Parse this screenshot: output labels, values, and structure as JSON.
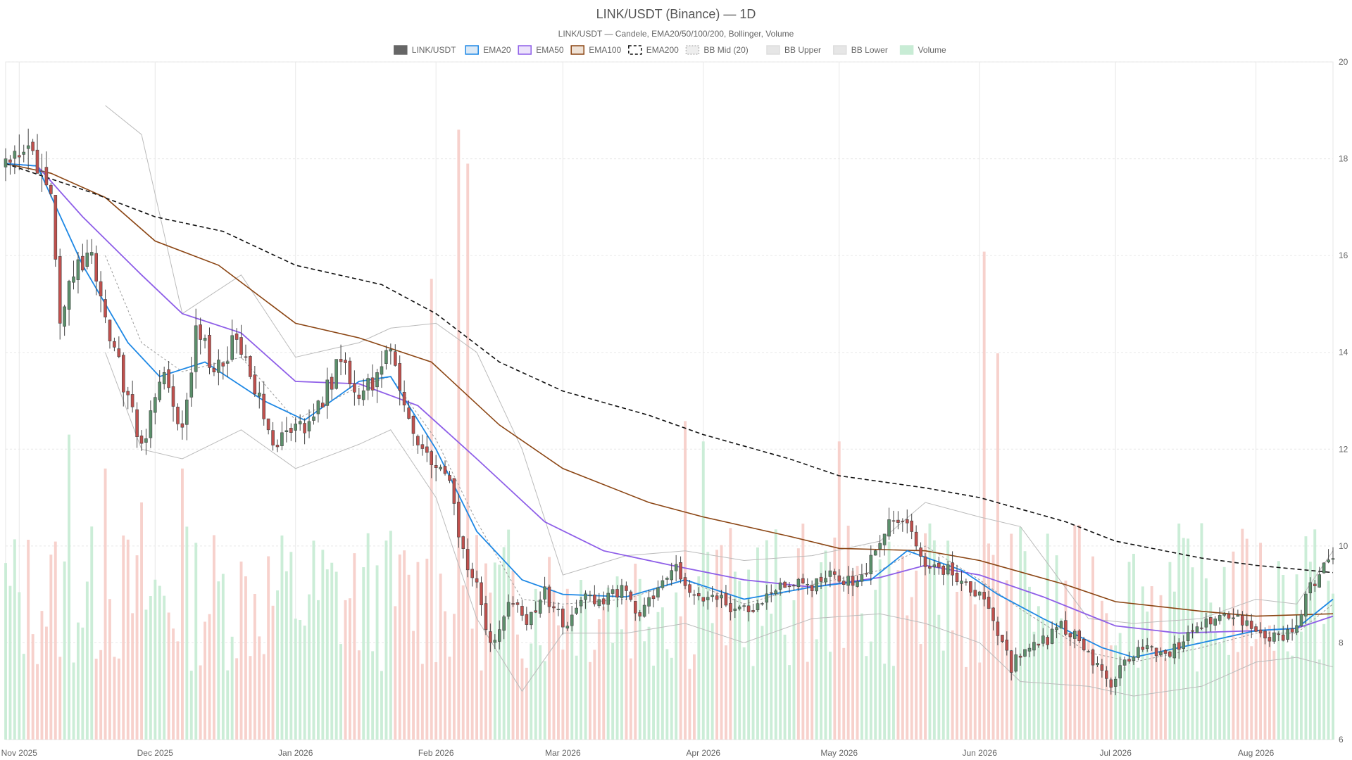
{
  "chart_data": {
    "type": "candlestick",
    "title": "LINK/USDT (Binance) — 1D",
    "subtitle": "LINK/USDT — Candele, EMA20/50/100/200, Bollinger, Volume",
    "legend_position": "top-center",
    "grid": true,
    "y_axis_position": "right",
    "ylim": [
      6,
      20
    ],
    "y_ticks": [
      6,
      8,
      10,
      12,
      14,
      16,
      18,
      20
    ],
    "x_range": [
      "2025-10-29",
      "2026-08-18"
    ],
    "x_ticks": [
      {
        "date": "2025-11-01",
        "label": "Nov 2025"
      },
      {
        "date": "2025-12-01",
        "label": "Dec 2025"
      },
      {
        "date": "2026-01-01",
        "label": "Jan 2026"
      },
      {
        "date": "2026-02-01",
        "label": "Feb 2026"
      },
      {
        "date": "2026-03-01",
        "label": "Mar 2026"
      },
      {
        "date": "2026-04-01",
        "label": "Apr 2026"
      },
      {
        "date": "2026-05-01",
        "label": "May 2026"
      },
      {
        "date": "2026-06-01",
        "label": "Jun 2026"
      },
      {
        "date": "2026-07-01",
        "label": "Jul 2026"
      },
      {
        "date": "2026-08-01",
        "label": "Aug 2026"
      }
    ],
    "colors": {
      "up": "#5b8f6b",
      "down": "#c0504d",
      "ema20": "#1e88e5",
      "ema50": "#8e5ee8",
      "ema100": "#8b4513",
      "ema200": "#111111",
      "bb_mid": "#999999",
      "bollinger": "#bbbbbb",
      "volume_up": "#c8ecd5",
      "volume_down": "#f7cfc9",
      "grid": "#e8e8e8"
    },
    "legend": [
      {
        "label": "LINK/USDT",
        "style": "candle"
      },
      {
        "label": "EMA20",
        "style": "ema20"
      },
      {
        "label": "EMA50",
        "style": "ema50"
      },
      {
        "label": "EMA100",
        "style": "ema100"
      },
      {
        "label": "EMA200",
        "style": "ema200"
      },
      {
        "label": "BB Mid (20)",
        "style": "bbmid"
      },
      {
        "label": "BB Upper",
        "style": "bbupper"
      },
      {
        "label": "BB Lower",
        "style": "bblower"
      },
      {
        "label": "Volume",
        "style": "volume"
      }
    ],
    "close_path": [
      [
        "2025-10-29",
        17.8
      ],
      [
        "2025-11-02",
        18.3
      ],
      [
        "2025-11-05",
        17.9
      ],
      [
        "2025-11-08",
        17.0
      ],
      [
        "2025-11-10",
        14.8
      ],
      [
        "2025-11-13",
        15.6
      ],
      [
        "2025-11-17",
        16.3
      ],
      [
        "2025-11-20",
        14.5
      ],
      [
        "2025-11-24",
        13.4
      ],
      [
        "2025-11-28",
        12.0
      ],
      [
        "2025-12-03",
        13.5
      ],
      [
        "2025-12-07",
        12.4
      ],
      [
        "2025-12-10",
        14.5
      ],
      [
        "2025-12-14",
        13.6
      ],
      [
        "2025-12-18",
        14.2
      ],
      [
        "2025-12-22",
        13.5
      ],
      [
        "2025-12-27",
        12.2
      ],
      [
        "2026-01-03",
        12.5
      ],
      [
        "2026-01-07",
        13.0
      ],
      [
        "2026-01-11",
        13.9
      ],
      [
        "2026-01-15",
        13.2
      ],
      [
        "2026-01-18",
        13.3
      ],
      [
        "2026-01-22",
        14.1
      ],
      [
        "2026-01-26",
        12.6
      ],
      [
        "2026-01-31",
        11.7
      ],
      [
        "2026-02-04",
        11.2
      ],
      [
        "2026-02-07",
        9.8
      ],
      [
        "2026-02-10",
        9.3
      ],
      [
        "2026-02-13",
        7.9
      ],
      [
        "2026-02-17",
        8.9
      ],
      [
        "2026-02-21",
        8.5
      ],
      [
        "2026-02-25",
        9.0
      ],
      [
        "2026-03-02",
        8.3
      ],
      [
        "2026-03-06",
        9.0
      ],
      [
        "2026-03-10",
        8.8
      ],
      [
        "2026-03-14",
        9.2
      ],
      [
        "2026-03-17",
        8.6
      ],
      [
        "2026-03-22",
        9.0
      ],
      [
        "2026-03-26",
        9.6
      ],
      [
        "2026-03-30",
        8.9
      ],
      [
        "2026-04-03",
        9.1
      ],
      [
        "2026-04-07",
        8.6
      ],
      [
        "2026-04-12",
        8.7
      ],
      [
        "2026-04-17",
        9.1
      ],
      [
        "2026-04-21",
        9.3
      ],
      [
        "2026-04-25",
        9.2
      ],
      [
        "2026-04-29",
        9.4
      ],
      [
        "2026-05-05",
        9.2
      ],
      [
        "2026-05-09",
        9.8
      ],
      [
        "2026-05-13",
        10.6
      ],
      [
        "2026-05-16",
        10.4
      ],
      [
        "2026-05-20",
        9.5
      ],
      [
        "2026-05-25",
        9.5
      ],
      [
        "2026-05-30",
        9.2
      ],
      [
        "2026-06-02",
        8.9
      ],
      [
        "2026-06-05",
        8.2
      ],
      [
        "2026-06-08",
        7.5
      ],
      [
        "2026-06-12",
        8.0
      ],
      [
        "2026-06-16",
        8.1
      ],
      [
        "2026-06-19",
        8.4
      ],
      [
        "2026-06-23",
        8.0
      ],
      [
        "2026-06-27",
        7.5
      ],
      [
        "2026-06-30",
        7.2
      ],
      [
        "2026-07-04",
        7.7
      ],
      [
        "2026-07-08",
        8.0
      ],
      [
        "2026-07-12",
        7.7
      ],
      [
        "2026-07-16",
        8.0
      ],
      [
        "2026-07-21",
        8.5
      ],
      [
        "2026-07-26",
        8.6
      ],
      [
        "2026-07-31",
        8.3
      ],
      [
        "2026-08-05",
        8.1
      ],
      [
        "2026-08-09",
        8.2
      ],
      [
        "2026-08-12",
        9.0
      ],
      [
        "2026-08-15",
        9.5
      ],
      [
        "2026-08-18",
        9.8
      ]
    ],
    "ema200": [
      [
        "2025-10-29",
        17.9
      ],
      [
        "2025-11-17",
        17.3
      ],
      [
        "2025-12-01",
        16.8
      ],
      [
        "2025-12-16",
        16.5
      ],
      [
        "2026-01-01",
        15.8
      ],
      [
        "2026-01-20",
        15.4
      ],
      [
        "2026-02-01",
        14.8
      ],
      [
        "2026-02-15",
        13.8
      ],
      [
        "2026-03-01",
        13.2
      ],
      [
        "2026-03-20",
        12.7
      ],
      [
        "2026-04-01",
        12.3
      ],
      [
        "2026-04-20",
        11.8
      ],
      [
        "2026-05-01",
        11.45
      ],
      [
        "2026-05-20",
        11.2
      ],
      [
        "2026-06-01",
        11.0
      ],
      [
        "2026-06-20",
        10.5
      ],
      [
        "2026-07-01",
        10.1
      ],
      [
        "2026-07-20",
        9.75
      ],
      [
        "2026-08-01",
        9.6
      ],
      [
        "2026-08-18",
        9.45
      ]
    ],
    "ema100": [
      [
        "2025-10-29",
        17.9
      ],
      [
        "2025-11-08",
        17.7
      ],
      [
        "2025-11-20",
        17.2
      ],
      [
        "2025-12-01",
        16.3
      ],
      [
        "2025-12-15",
        15.8
      ],
      [
        "2026-01-01",
        14.6
      ],
      [
        "2026-01-15",
        14.3
      ],
      [
        "2026-01-31",
        13.8
      ],
      [
        "2026-02-15",
        12.5
      ],
      [
        "2026-03-01",
        11.6
      ],
      [
        "2026-03-20",
        10.9
      ],
      [
        "2026-04-01",
        10.6
      ],
      [
        "2026-04-20",
        10.2
      ],
      [
        "2026-05-01",
        9.95
      ],
      [
        "2026-05-20",
        9.9
      ],
      [
        "2026-06-01",
        9.7
      ],
      [
        "2026-06-20",
        9.2
      ],
      [
        "2026-07-01",
        8.85
      ],
      [
        "2026-07-20",
        8.65
      ],
      [
        "2026-08-01",
        8.55
      ],
      [
        "2026-08-18",
        8.6
      ]
    ],
    "ema50": [
      [
        "2025-10-29",
        17.9
      ],
      [
        "2025-11-05",
        17.85
      ],
      [
        "2025-11-15",
        16.8
      ],
      [
        "2025-11-28",
        15.6
      ],
      [
        "2025-12-07",
        14.8
      ],
      [
        "2025-12-20",
        14.4
      ],
      [
        "2026-01-01",
        13.4
      ],
      [
        "2026-01-15",
        13.35
      ],
      [
        "2026-01-28",
        12.9
      ],
      [
        "2026-02-10",
        11.8
      ],
      [
        "2026-02-25",
        10.5
      ],
      [
        "2026-03-10",
        9.9
      ],
      [
        "2026-03-25",
        9.6
      ],
      [
        "2026-04-10",
        9.3
      ],
      [
        "2026-04-25",
        9.15
      ],
      [
        "2026-05-10",
        9.35
      ],
      [
        "2026-05-20",
        9.6
      ],
      [
        "2026-06-01",
        9.4
      ],
      [
        "2026-06-15",
        8.95
      ],
      [
        "2026-07-01",
        8.35
      ],
      [
        "2026-07-15",
        8.2
      ],
      [
        "2026-08-01",
        8.25
      ],
      [
        "2026-08-10",
        8.3
      ],
      [
        "2026-08-18",
        8.55
      ]
    ],
    "ema20": [
      [
        "2025-10-29",
        17.9
      ],
      [
        "2025-11-05",
        17.85
      ],
      [
        "2025-11-15",
        15.8
      ],
      [
        "2025-11-25",
        14.2
      ],
      [
        "2025-12-02",
        13.5
      ],
      [
        "2025-12-12",
        13.8
      ],
      [
        "2025-12-25",
        13.0
      ],
      [
        "2026-01-03",
        12.6
      ],
      [
        "2026-01-15",
        13.4
      ],
      [
        "2026-01-22",
        13.5
      ],
      [
        "2026-02-01",
        12.0
      ],
      [
        "2026-02-10",
        10.3
      ],
      [
        "2026-02-20",
        9.3
      ],
      [
        "2026-03-01",
        9.0
      ],
      [
        "2026-03-15",
        8.95
      ],
      [
        "2026-03-28",
        9.3
      ],
      [
        "2026-04-10",
        8.9
      ],
      [
        "2026-04-25",
        9.15
      ],
      [
        "2026-05-08",
        9.3
      ],
      [
        "2026-05-16",
        9.9
      ],
      [
        "2026-05-28",
        9.5
      ],
      [
        "2026-06-05",
        9.0
      ],
      [
        "2026-06-15",
        8.5
      ],
      [
        "2026-06-28",
        7.9
      ],
      [
        "2026-07-05",
        7.7
      ],
      [
        "2026-07-20",
        8.0
      ],
      [
        "2026-08-01",
        8.25
      ],
      [
        "2026-08-10",
        8.3
      ],
      [
        "2026-08-18",
        8.9
      ]
    ],
    "bb_mid": [
      [
        "2025-11-20",
        16.0
      ],
      [
        "2025-11-28",
        14.2
      ],
      [
        "2025-12-07",
        13.6
      ],
      [
        "2025-12-20",
        13.9
      ],
      [
        "2026-01-01",
        12.6
      ],
      [
        "2026-01-15",
        13.3
      ],
      [
        "2026-01-22",
        13.5
      ],
      [
        "2026-02-01",
        12.2
      ],
      [
        "2026-02-10",
        10.5
      ],
      [
        "2026-02-20",
        8.9
      ],
      [
        "2026-03-01",
        8.8
      ],
      [
        "2026-03-15",
        8.9
      ],
      [
        "2026-03-28",
        9.3
      ],
      [
        "2026-04-10",
        8.8
      ],
      [
        "2026-04-25",
        9.2
      ],
      [
        "2026-05-10",
        9.5
      ],
      [
        "2026-05-20",
        10.0
      ],
      [
        "2026-06-01",
        9.3
      ],
      [
        "2026-06-10",
        8.7
      ],
      [
        "2026-06-25",
        7.8
      ],
      [
        "2026-07-05",
        7.6
      ],
      [
        "2026-07-20",
        7.9
      ],
      [
        "2026-08-01",
        8.2
      ],
      [
        "2026-08-10",
        8.2
      ],
      [
        "2026-08-18",
        8.8
      ]
    ],
    "bb_upper": [
      [
        "2025-11-20",
        19.1
      ],
      [
        "2025-11-28",
        18.5
      ],
      [
        "2025-12-07",
        14.8
      ],
      [
        "2025-12-20",
        15.6
      ],
      [
        "2026-01-01",
        13.9
      ],
      [
        "2026-01-15",
        14.2
      ],
      [
        "2026-01-22",
        14.5
      ],
      [
        "2026-02-01",
        14.6
      ],
      [
        "2026-02-10",
        14.0
      ],
      [
        "2026-02-20",
        12.0
      ],
      [
        "2026-03-01",
        9.4
      ],
      [
        "2026-03-15",
        9.8
      ],
      [
        "2026-03-28",
        9.9
      ],
      [
        "2026-04-10",
        9.7
      ],
      [
        "2026-04-25",
        9.8
      ],
      [
        "2026-05-10",
        10.1
      ],
      [
        "2026-05-20",
        10.9
      ],
      [
        "2026-06-01",
        10.6
      ],
      [
        "2026-06-10",
        10.4
      ],
      [
        "2026-06-25",
        8.5
      ],
      [
        "2026-07-05",
        8.4
      ],
      [
        "2026-07-20",
        8.5
      ],
      [
        "2026-08-01",
        8.9
      ],
      [
        "2026-08-10",
        8.8
      ],
      [
        "2026-08-18",
        9.9
      ]
    ],
    "bb_lower": [
      [
        "2025-11-20",
        14.0
      ],
      [
        "2025-11-28",
        12.0
      ],
      [
        "2025-12-07",
        11.8
      ],
      [
        "2025-12-20",
        12.4
      ],
      [
        "2026-01-01",
        11.6
      ],
      [
        "2026-01-15",
        12.1
      ],
      [
        "2026-01-22",
        12.4
      ],
      [
        "2026-02-01",
        11.0
      ],
      [
        "2026-02-10",
        8.5
      ],
      [
        "2026-02-20",
        7.0
      ],
      [
        "2026-03-01",
        8.2
      ],
      [
        "2026-03-15",
        8.2
      ],
      [
        "2026-03-28",
        8.4
      ],
      [
        "2026-04-10",
        8.0
      ],
      [
        "2026-04-25",
        8.5
      ],
      [
        "2026-05-10",
        8.6
      ],
      [
        "2026-05-20",
        8.4
      ],
      [
        "2026-06-01",
        8.0
      ],
      [
        "2026-06-10",
        7.2
      ],
      [
        "2026-06-25",
        7.1
      ],
      [
        "2026-07-05",
        6.9
      ],
      [
        "2026-07-20",
        7.1
      ],
      [
        "2026-08-01",
        7.6
      ],
      [
        "2026-08-10",
        7.7
      ],
      [
        "2026-08-18",
        7.5
      ]
    ],
    "volume_peaks": [
      [
        "2025-11-12",
        0.45
      ],
      [
        "2025-11-20",
        0.4
      ],
      [
        "2025-11-28",
        0.35
      ],
      [
        "2025-12-07",
        0.4
      ],
      [
        "2026-01-01",
        0.1
      ],
      [
        "2026-01-22",
        0.25
      ],
      [
        "2026-01-31",
        0.68
      ],
      [
        "2026-02-06",
        0.9
      ],
      [
        "2026-02-08",
        0.85
      ],
      [
        "2026-03-28",
        0.47
      ],
      [
        "2026-04-01",
        0.44
      ],
      [
        "2026-05-01",
        0.44
      ],
      [
        "2026-06-02",
        0.72
      ],
      [
        "2026-06-05",
        0.57
      ],
      [
        "2026-07-15",
        0.2
      ],
      [
        "2026-08-12",
        0.3
      ],
      [
        "2026-08-18",
        0.1
      ]
    ]
  }
}
